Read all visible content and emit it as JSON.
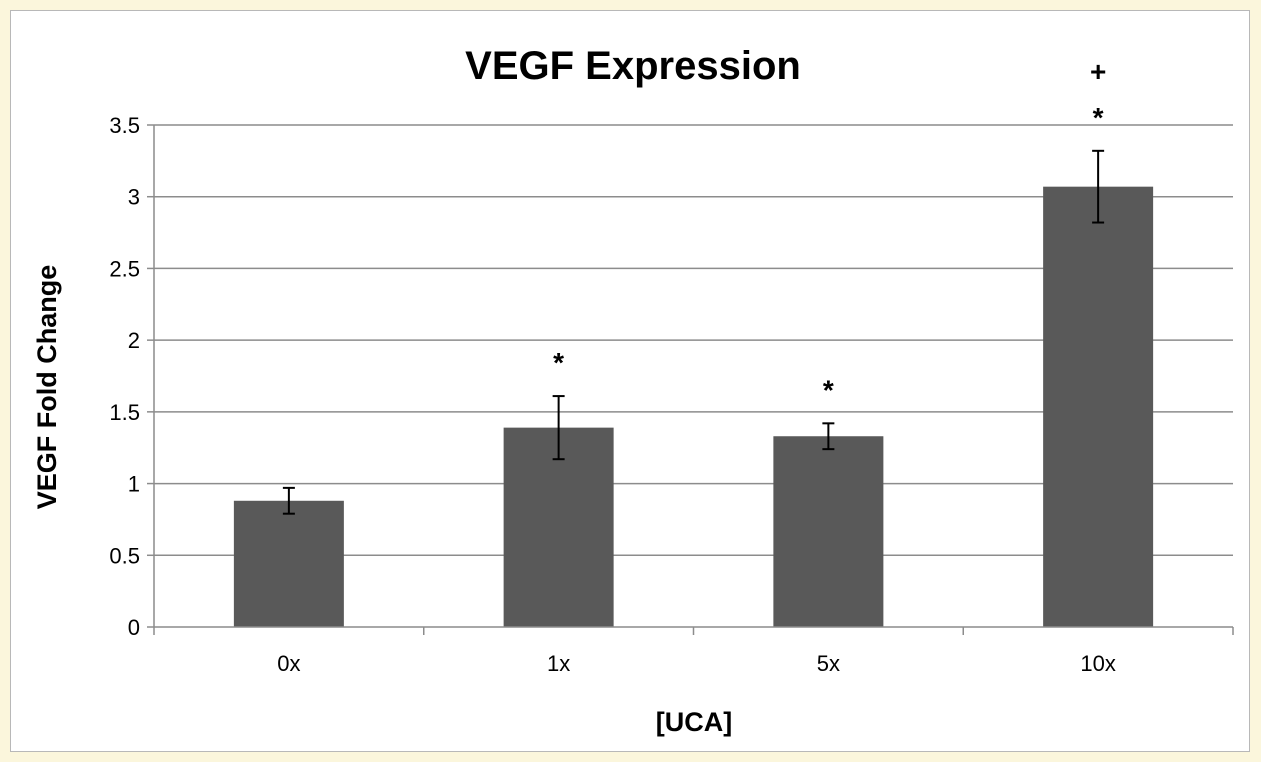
{
  "chart_data": {
    "type": "bar",
    "title": "VEGF Expression",
    "xlabel": "[UCA]",
    "ylabel": "VEGF Fold Change",
    "categories": [
      "0x",
      "1x",
      "5x",
      "10x"
    ],
    "values": [
      0.88,
      1.39,
      1.33,
      3.07
    ],
    "error": [
      0.09,
      0.22,
      0.09,
      0.25
    ],
    "annotations": [
      [],
      [
        "*"
      ],
      [
        "*"
      ],
      [
        "*",
        "+"
      ]
    ],
    "ylim": [
      0,
      3.5
    ],
    "yticks": [
      "0",
      "0.5",
      "1",
      "1.5",
      "2",
      "2.5",
      "3",
      "3.5"
    ],
    "grid": true,
    "bar_color": "#595959",
    "grid_color": "#8c8c8c",
    "background_color": "#fbf6dc"
  }
}
